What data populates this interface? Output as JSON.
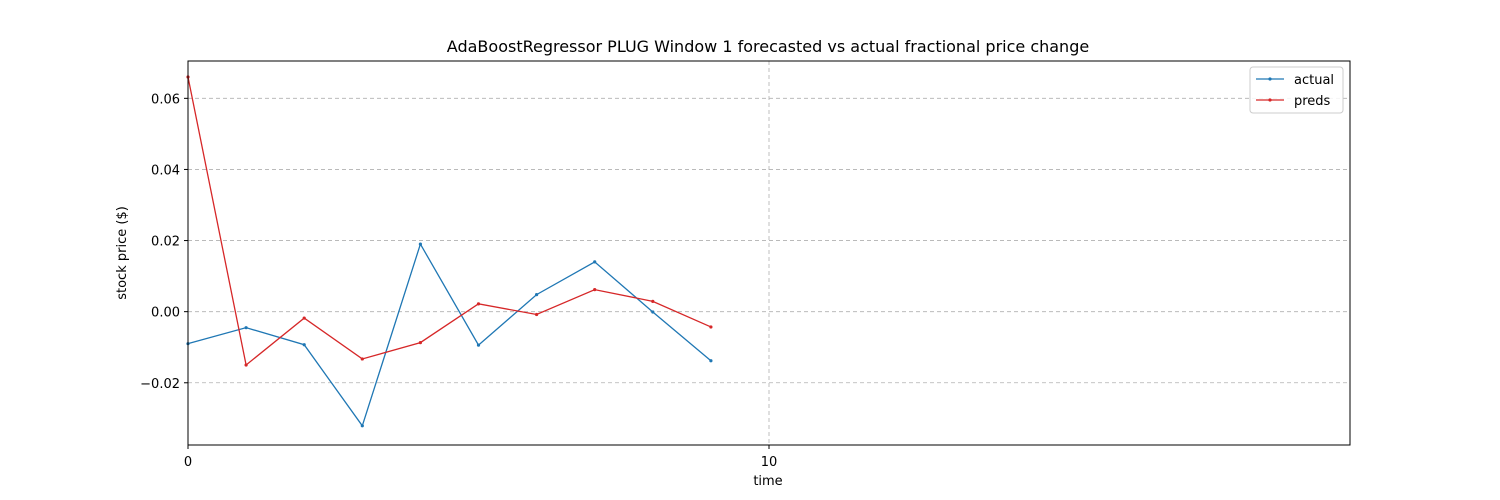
{
  "chart_data": {
    "type": "line",
    "title": "AdaBoostRegressor PLUG Window 1 forecasted vs actual fractional price change",
    "xlabel": "time",
    "ylabel": "stock price ($)",
    "xlim": [
      0,
      20
    ],
    "ylim": [
      -0.0375,
      0.0705
    ],
    "xticks": [
      0,
      10
    ],
    "xtick_labels": [
      "0",
      "10"
    ],
    "yticks": [
      -0.02,
      0.0,
      0.02,
      0.04,
      0.06
    ],
    "ytick_labels": [
      "−0.02",
      "0.00",
      "0.02",
      "0.04",
      "0.06"
    ],
    "grid": true,
    "legend_position": "top-right",
    "x": [
      0,
      1,
      2,
      3,
      4,
      5,
      6,
      7,
      8,
      9
    ],
    "series": [
      {
        "name": "actual",
        "color": "#1f77b4",
        "values": [
          -0.009,
          -0.0045,
          -0.0093,
          -0.0321,
          0.019,
          -0.0094,
          0.0048,
          0.014,
          -0.0001,
          -0.0138
        ]
      },
      {
        "name": "preds",
        "color": "#d62728",
        "values": [
          0.066,
          -0.015,
          -0.0018,
          -0.0133,
          -0.0087,
          0.0022,
          -0.0008,
          0.0062,
          0.0029,
          -0.0043
        ]
      }
    ]
  }
}
